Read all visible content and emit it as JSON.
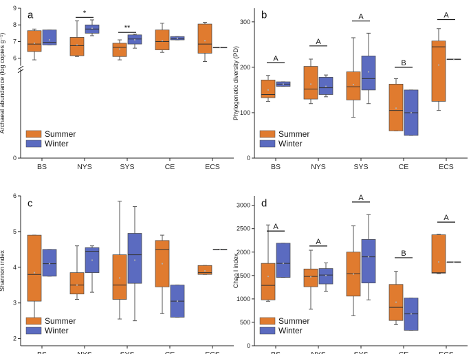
{
  "colors": {
    "summer": "#e07b2f",
    "winter": "#5b6bc0",
    "median": "#333333",
    "mean": "#b0b0b0"
  },
  "chart_data": [
    {
      "panel": "a",
      "type": "box",
      "ylabel": "Archaeal abundance (log copies g⁻¹)",
      "ylim": [
        0,
        9
      ],
      "yticks": [
        0,
        6,
        7,
        8,
        9
      ],
      "axis_break": true,
      "categories": [
        "BS",
        "NYS",
        "SYS",
        "CE",
        "ECS"
      ],
      "legend": [
        "Summer",
        "Winter"
      ],
      "legend_position": "bottom-left",
      "series": [
        {
          "name": "Summer",
          "boxes": [
            {
              "min": 5.9,
              "q1": 6.4,
              "median": 6.85,
              "q3": 7.65,
              "max": 7.75,
              "mean": 6.9
            },
            {
              "min": 6.1,
              "q1": 6.15,
              "median": 6.75,
              "q3": 7.25,
              "max": 8.25,
              "mean": 6.8
            },
            {
              "min": 5.9,
              "q1": 6.1,
              "median": 6.65,
              "q3": 6.9,
              "max": 7.1,
              "mean": 6.55
            },
            {
              "min": 6.35,
              "q1": 6.5,
              "median": 7.0,
              "q3": 7.7,
              "max": 8.1,
              "mean": 7.05
            },
            {
              "min": 5.8,
              "q1": 6.3,
              "median": 6.85,
              "q3": 8.05,
              "max": 8.15,
              "mean": 7.05
            }
          ]
        },
        {
          "name": "Winter",
          "boxes": [
            {
              "min": 6.8,
              "q1": 6.8,
              "median": 6.95,
              "q3": 7.7,
              "max": 7.7,
              "mean": 7.1
            },
            {
              "min": 7.35,
              "q1": 7.5,
              "median": 7.75,
              "q3": 8.0,
              "max": 8.3,
              "mean": 7.8
            },
            {
              "min": 6.6,
              "q1": 6.85,
              "median": 7.15,
              "q3": 7.4,
              "max": 7.45,
              "mean": 7.1
            },
            {
              "min": 7.1,
              "q1": 7.1,
              "median": 7.2,
              "q3": 7.3,
              "max": 7.3,
              "mean": 7.2
            },
            {
              "min": 6.65,
              "q1": 6.65,
              "median": 6.65,
              "q3": 6.65,
              "max": 6.65,
              "mean": 6.65
            }
          ]
        }
      ],
      "annotations": [
        {
          "category": "NYS",
          "label": "*",
          "y": 8.45
        },
        {
          "category": "SYS",
          "label": "**",
          "y": 7.55
        }
      ]
    },
    {
      "panel": "b",
      "type": "box",
      "ylabel": "Phylogenetic diversity (PD)",
      "ylim": [
        0,
        330
      ],
      "yticks": [
        0,
        100,
        200,
        300
      ],
      "categories": [
        "BS",
        "NYS",
        "SYS",
        "CE",
        "ECS"
      ],
      "legend": [
        "Summer",
        "Winter"
      ],
      "legend_position": "bottom-left",
      "series": [
        {
          "name": "Summer",
          "boxes": [
            {
              "min": 125,
              "q1": 133,
              "median": 140,
              "q3": 172,
              "max": 182,
              "mean": 150
            },
            {
              "min": 120,
              "q1": 130,
              "median": 152,
              "q3": 202,
              "max": 218,
              "mean": 163
            },
            {
              "min": 90,
              "q1": 128,
              "median": 157,
              "q3": 190,
              "max": 265,
              "mean": 162
            },
            {
              "min": 60,
              "q1": 60,
              "median": 105,
              "q3": 163,
              "max": 175,
              "mean": 110
            },
            {
              "min": 105,
              "q1": 125,
              "median": 245,
              "q3": 258,
              "max": 285,
              "mean": 205
            }
          ]
        },
        {
          "name": "Winter",
          "boxes": [
            {
              "min": 158,
              "q1": 158,
              "median": 163,
              "q3": 168,
              "max": 168,
              "mean": 163
            },
            {
              "min": 135,
              "q1": 140,
              "median": 155,
              "q3": 178,
              "max": 183,
              "mean": 158
            },
            {
              "min": 120,
              "q1": 150,
              "median": 175,
              "q3": 225,
              "max": 275,
              "mean": 190
            },
            {
              "min": 50,
              "q1": 50,
              "median": 100,
              "q3": 150,
              "max": 150,
              "mean": 100
            },
            {
              "min": 218,
              "q1": 218,
              "median": 218,
              "q3": 218,
              "max": 218,
              "mean": 218
            }
          ]
        }
      ],
      "annotations": [
        {
          "category": "BS",
          "label": "A",
          "y": 210
        },
        {
          "category": "NYS",
          "label": "A",
          "y": 247
        },
        {
          "category": "SYS",
          "label": "A",
          "y": 302
        },
        {
          "category": "CE",
          "label": "B",
          "y": 200
        },
        {
          "category": "ECS",
          "label": "A",
          "y": 305
        }
      ]
    },
    {
      "panel": "c",
      "type": "box",
      "ylabel": "Shannon index",
      "ylim": [
        1.8,
        6
      ],
      "yticks": [
        2,
        3,
        4,
        5,
        6
      ],
      "categories": [
        "BS",
        "NYS",
        "SYS",
        "CE",
        "ECS"
      ],
      "legend": [
        "Summer",
        "Winter"
      ],
      "legend_position": "bottom-left",
      "series": [
        {
          "name": "Summer",
          "boxes": [
            {
              "min": 2.5,
              "q1": 3.05,
              "median": 3.8,
              "q3": 4.9,
              "max": 4.9,
              "mean": 3.85
            },
            {
              "min": 3.1,
              "q1": 3.25,
              "median": 3.5,
              "q3": 3.85,
              "max": 4.6,
              "mean": 3.5
            },
            {
              "min": 2.55,
              "q1": 3.1,
              "median": 3.5,
              "q3": 4.35,
              "max": 5.85,
              "mean": 3.7
            },
            {
              "min": 2.7,
              "q1": 3.45,
              "median": 4.5,
              "q3": 4.75,
              "max": 4.9,
              "mean": 4.1
            },
            {
              "min": 3.8,
              "q1": 3.8,
              "median": 3.85,
              "q3": 4.05,
              "max": 4.05,
              "mean": 3.9
            }
          ]
        },
        {
          "name": "Winter",
          "boxes": [
            {
              "min": 3.75,
              "q1": 3.75,
              "median": 4.1,
              "q3": 4.5,
              "max": 4.5,
              "mean": 4.1
            },
            {
              "min": 3.3,
              "q1": 3.85,
              "median": 4.45,
              "q3": 4.55,
              "max": 4.6,
              "mean": 4.2
            },
            {
              "min": 2.5,
              "q1": 3.55,
              "median": 4.35,
              "q3": 4.95,
              "max": 5.7,
              "mean": 4.2
            },
            {
              "min": 2.6,
              "q1": 2.6,
              "median": 3.05,
              "q3": 3.5,
              "max": 3.5,
              "mean": 3.05
            },
            {
              "min": 4.5,
              "q1": 4.5,
              "median": 4.5,
              "q3": 4.5,
              "max": 4.5,
              "mean": 4.5
            }
          ]
        }
      ],
      "annotations": []
    },
    {
      "panel": "d",
      "type": "box",
      "ylabel": "Chao I index",
      "ylim": [
        0,
        3200
      ],
      "yticks": [
        0,
        500,
        1000,
        1500,
        2000,
        2500,
        3000
      ],
      "categories": [
        "BS",
        "NYS",
        "SYS",
        "CE",
        "ECS"
      ],
      "legend": [
        "Summer",
        "Winter"
      ],
      "legend_position": "bottom-left",
      "series": [
        {
          "name": "Summer",
          "boxes": [
            {
              "min": 950,
              "q1": 980,
              "median": 1290,
              "q3": 1760,
              "max": 2580,
              "mean": 1480
            },
            {
              "min": 780,
              "q1": 1260,
              "median": 1480,
              "q3": 1640,
              "max": 2040,
              "mean": 1470
            },
            {
              "min": 640,
              "q1": 1060,
              "median": 1540,
              "q3": 2000,
              "max": 2560,
              "mean": 1530
            },
            {
              "min": 450,
              "q1": 540,
              "median": 820,
              "q3": 1310,
              "max": 1590,
              "mean": 930
            },
            {
              "min": 1540,
              "q1": 1550,
              "median": 1560,
              "q3": 2370,
              "max": 2380,
              "mean": 1790
            }
          ]
        },
        {
          "name": "Winter",
          "boxes": [
            {
              "min": 1460,
              "q1": 1460,
              "median": 1760,
              "q3": 2190,
              "max": 2190,
              "mean": 1760
            },
            {
              "min": 1160,
              "q1": 1320,
              "median": 1510,
              "q3": 1650,
              "max": 1770,
              "mean": 1500
            },
            {
              "min": 980,
              "q1": 1340,
              "median": 1900,
              "q3": 2270,
              "max": 2800,
              "mean": 1900
            },
            {
              "min": 330,
              "q1": 330,
              "median": 680,
              "q3": 1020,
              "max": 1020,
              "mean": 680
            },
            {
              "min": 1790,
              "q1": 1790,
              "median": 1790,
              "q3": 1790,
              "max": 1790,
              "mean": 1790
            }
          ]
        }
      ],
      "annotations": [
        {
          "category": "BS",
          "label": "A",
          "y": 2450
        },
        {
          "category": "NYS",
          "label": "A",
          "y": 2130
        },
        {
          "category": "SYS",
          "label": "A",
          "y": 3070
        },
        {
          "category": "CE",
          "label": "B",
          "y": 1880
        },
        {
          "category": "ECS",
          "label": "A",
          "y": 2640
        }
      ]
    }
  ]
}
